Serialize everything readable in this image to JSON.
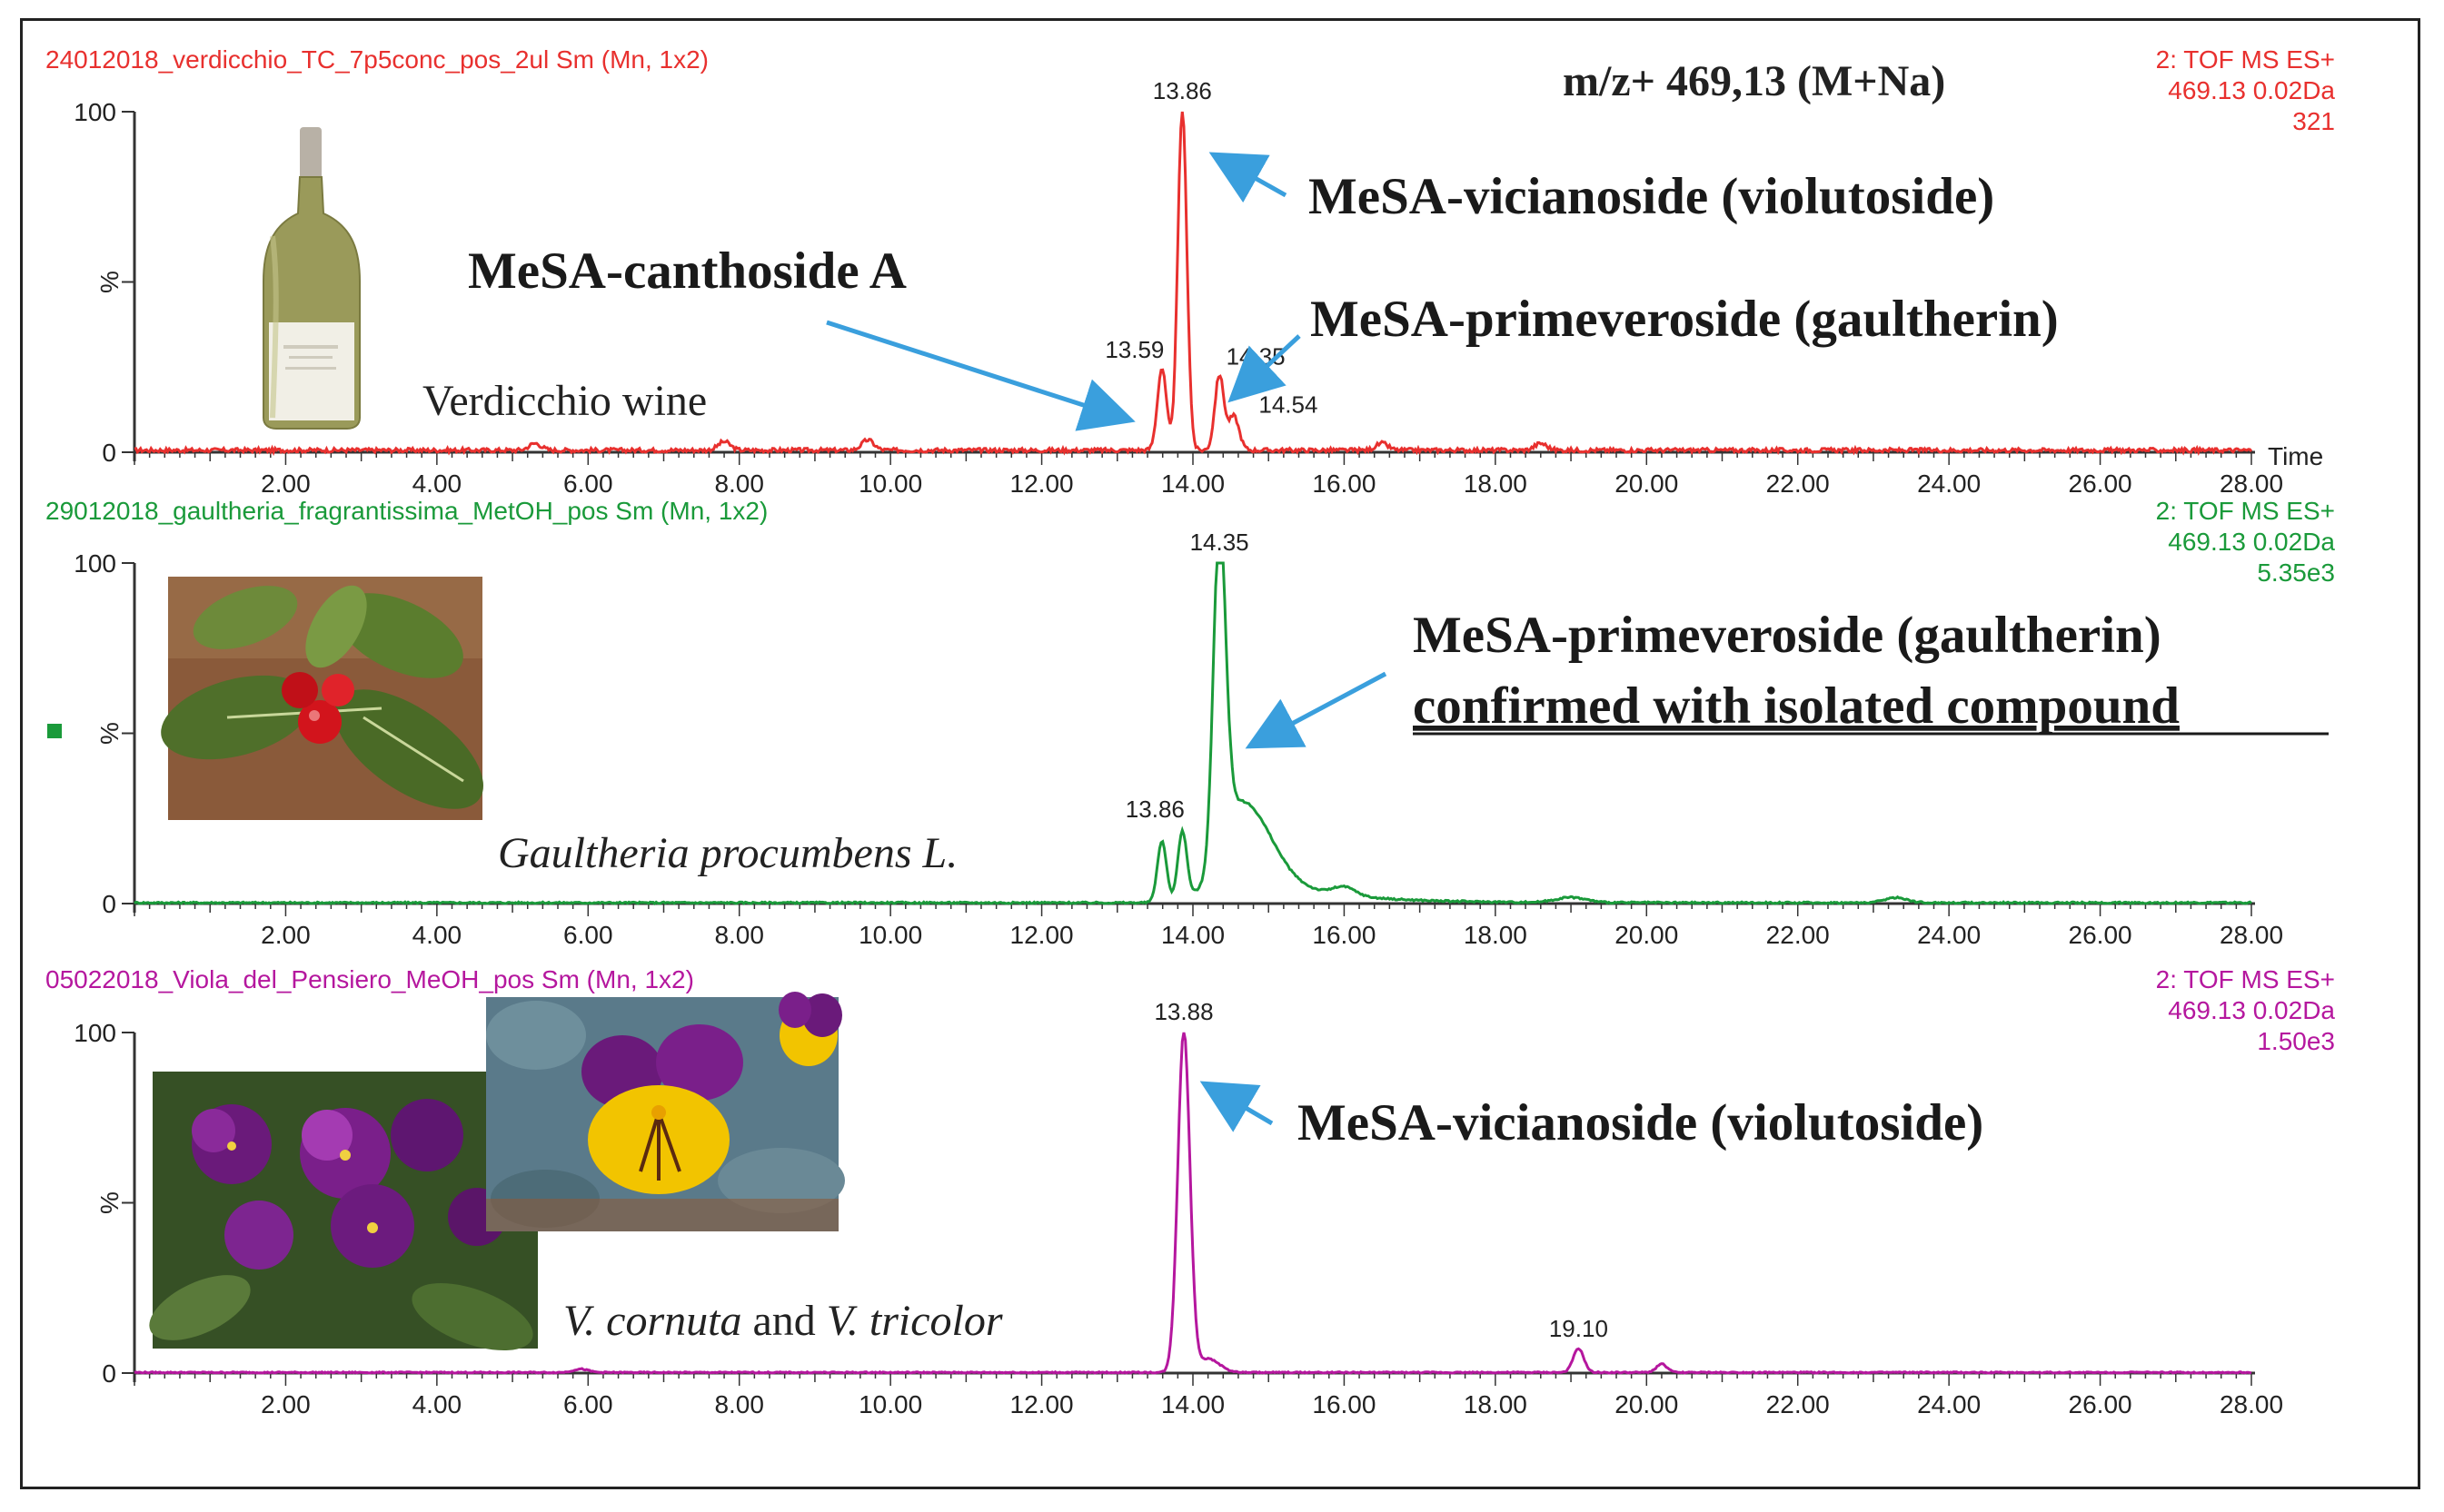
{
  "figure": {
    "mz_label": "m/z+ 469,13 (M+Na)",
    "time_label": "Time"
  },
  "chart_data": [
    {
      "type": "line",
      "file_label": "24012018_verdicchio_TC_7p5conc_pos_2ul Sm (Mn, 1x2)",
      "mode_label": "2: TOF MS ES+",
      "mass_label": "469.13 0.02Da",
      "intensity_label": "321",
      "sample_label": "Verdicchio wine",
      "color": "#e8302e",
      "xlim": [
        0,
        28
      ],
      "ylim": [
        0,
        100
      ],
      "y_ticks": [
        "0",
        "%",
        "100"
      ],
      "x_ticks": [
        "2.00",
        "4.00",
        "6.00",
        "8.00",
        "10.00",
        "12.00",
        "14.00",
        "16.00",
        "18.00",
        "20.00",
        "22.00",
        "24.00",
        "26.00",
        "28.00"
      ],
      "peaks": [
        {
          "rt": 13.59,
          "height": 24,
          "width": 0.06,
          "label": "13.59"
        },
        {
          "rt": 13.86,
          "height": 100,
          "width": 0.06,
          "label": "13.86"
        },
        {
          "rt": 14.35,
          "height": 22,
          "width": 0.06,
          "label": "14.35"
        },
        {
          "rt": 14.54,
          "height": 10,
          "width": 0.07,
          "label": "14.54"
        },
        {
          "rt": 9.7,
          "height": 3,
          "width": 0.08,
          "label": ""
        },
        {
          "rt": 7.8,
          "height": 2.5,
          "width": 0.08,
          "label": ""
        },
        {
          "rt": 5.3,
          "height": 2,
          "width": 0.08,
          "label": ""
        },
        {
          "rt": 16.5,
          "height": 2,
          "width": 0.08,
          "label": ""
        },
        {
          "rt": 18.6,
          "height": 2,
          "width": 0.08,
          "label": ""
        }
      ],
      "noise": 1.0,
      "annotations": [
        {
          "text": "MeSA-vicianoside (violutoside)"
        },
        {
          "text": "MeSA-canthoside A"
        },
        {
          "text": "MeSA-primeveroside (gaultherin)"
        }
      ]
    },
    {
      "type": "line",
      "file_label": "29012018_gaultheria_fragrantissima_MetOH_pos Sm (Mn, 1x2)",
      "mode_label": "2: TOF MS ES+",
      "mass_label": "469.13 0.02Da",
      "intensity_label": "5.35e3",
      "sample_label": "Gaultheria procumbens L.",
      "color": "#1a9a3a",
      "xlim": [
        0,
        28
      ],
      "ylim": [
        0,
        100
      ],
      "y_ticks": [
        "0",
        "%",
        "100"
      ],
      "x_ticks": [
        "2.00",
        "4.00",
        "6.00",
        "8.00",
        "10.00",
        "12.00",
        "14.00",
        "16.00",
        "18.00",
        "20.00",
        "22.00",
        "24.00",
        "26.00",
        "28.00"
      ],
      "peaks": [
        {
          "rt": 13.59,
          "height": 18,
          "width": 0.06,
          "label": ""
        },
        {
          "rt": 13.86,
          "height": 20,
          "width": 0.06,
          "label": "13.86"
        },
        {
          "rt": 14.35,
          "height": 100,
          "width": 0.08,
          "label": "14.35"
        },
        {
          "rt": 14.7,
          "height": 20,
          "width": 0.35,
          "label": ""
        },
        {
          "rt": 16.0,
          "height": 2.5,
          "width": 0.15,
          "label": ""
        },
        {
          "rt": 19.0,
          "height": 1.5,
          "width": 0.2,
          "label": ""
        },
        {
          "rt": 23.3,
          "height": 1.5,
          "width": 0.15,
          "label": ""
        }
      ],
      "noise": 0.4,
      "annotations": [
        {
          "text": "MeSA-primeveroside (gaultherin)"
        },
        {
          "text": "confirmed with isolated compound"
        }
      ]
    },
    {
      "type": "line",
      "file_label": "05022018_Viola_del_Pensiero_MeOH_pos Sm (Mn, 1x2)",
      "mode_label": "2: TOF MS ES+",
      "mass_label": "469.13 0.02Da",
      "intensity_label": "1.50e3",
      "sample_label_parts": [
        "V. cornuta",
        " and ",
        "V. tricolor"
      ],
      "color": "#b5179e",
      "xlim": [
        0,
        28
      ],
      "ylim": [
        0,
        100
      ],
      "y_ticks": [
        "0",
        "%",
        "100"
      ],
      "x_ticks": [
        "2.00",
        "4.00",
        "6.00",
        "8.00",
        "10.00",
        "12.00",
        "14.00",
        "16.00",
        "18.00",
        "20.00",
        "22.00",
        "24.00",
        "26.00",
        "28.00"
      ],
      "peaks": [
        {
          "rt": 13.88,
          "height": 100,
          "width": 0.08,
          "label": "13.88"
        },
        {
          "rt": 14.2,
          "height": 4,
          "width": 0.15,
          "label": ""
        },
        {
          "rt": 19.1,
          "height": 7,
          "width": 0.07,
          "label": "19.10"
        },
        {
          "rt": 20.2,
          "height": 2.5,
          "width": 0.07,
          "label": ""
        },
        {
          "rt": 5.9,
          "height": 1,
          "width": 0.1,
          "label": ""
        }
      ],
      "noise": 0.3,
      "annotations": [
        {
          "text": "MeSA-vicianoside (violutoside)"
        }
      ]
    }
  ],
  "photos": [
    {
      "name": "wine-bottle",
      "colors": {
        "glass": "#9a9a5a",
        "label": "#f1efe6",
        "cap": "#b8b1a6"
      }
    },
    {
      "name": "wintergreen-plant",
      "colors": {
        "leaf": "#4f6f2a",
        "berry": "#d2141c",
        "ground": "#8a5a3a"
      }
    },
    {
      "name": "viola-cornuta",
      "colors": {
        "petal": "#6a1a7a",
        "leaf": "#3c5a2a"
      }
    },
    {
      "name": "viola-tricolor",
      "colors": {
        "petal": "#f2c400",
        "upper": "#6a1a7a",
        "leaf": "#5a7a8a"
      }
    }
  ]
}
